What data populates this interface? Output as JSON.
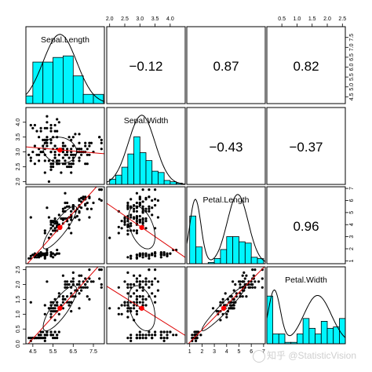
{
  "chart_data": {
    "type": "scatter-matrix",
    "variables": [
      "Sepal.Length",
      "Sepal.Width",
      "Petal.Length",
      "Petal.Width"
    ],
    "ranges": [
      [
        4.3,
        7.9
      ],
      [
        2.0,
        4.4
      ],
      [
        1.0,
        6.9
      ],
      [
        0.1,
        2.5
      ]
    ],
    "correlations": [
      {
        "row": 0,
        "col": 1,
        "label": "−0.12"
      },
      {
        "row": 0,
        "col": 2,
        "label": "0.87"
      },
      {
        "row": 0,
        "col": 3,
        "label": "0.82"
      },
      {
        "row": 1,
        "col": 2,
        "label": "−0.43"
      },
      {
        "row": 1,
        "col": 3,
        "label": "−0.37"
      },
      {
        "row": 2,
        "col": 3,
        "label": "0.96"
      }
    ],
    "top_ticks": [
      {
        "col": 1,
        "labels": [
          "2.0",
          "2.5",
          "3.0",
          "3.5",
          "4.0"
        ],
        "values": [
          2.0,
          2.5,
          3.0,
          3.5,
          4.0
        ]
      },
      {
        "col": 3,
        "labels": [
          "0.5",
          "1.0",
          "1.5",
          "2.0",
          "2.5"
        ],
        "values": [
          0.5,
          1.0,
          1.5,
          2.0,
          2.5
        ]
      }
    ],
    "bottom_ticks": [
      {
        "col": 0,
        "labels": [
          "4.5",
          "5.5",
          "6.5",
          "7.5"
        ],
        "values": [
          4.5,
          5.5,
          6.5,
          7.5
        ]
      },
      {
        "col": 2,
        "labels": [
          "1",
          "2",
          "3",
          "4",
          "5",
          "6",
          "7"
        ],
        "values": [
          1,
          2,
          3,
          4,
          5,
          6,
          7
        ]
      }
    ],
    "left_ticks": [
      {
        "row": 1,
        "labels": [
          "2.0",
          "2.5",
          "3.0",
          "3.5",
          "4.0"
        ],
        "values": [
          2.0,
          2.5,
          3.0,
          3.5,
          4.0
        ]
      },
      {
        "row": 3,
        "labels": [
          "0.0",
          "0.5",
          "1.0",
          "1.5",
          "2.0",
          "2.5"
        ],
        "values": [
          0.0,
          0.5,
          1.0,
          1.5,
          2.0,
          2.5
        ]
      }
    ],
    "right_ticks": [
      {
        "row": 0,
        "labels": [
          "4.5",
          "5.0",
          "5.5",
          "6.0",
          "6.5",
          "7.0",
          "7.5"
        ],
        "values": [
          4.5,
          5.0,
          5.5,
          6.0,
          6.5,
          7.0,
          7.5
        ]
      },
      {
        "row": 2,
        "labels": [
          "1",
          "2",
          "3",
          "4",
          "5",
          "6",
          "7"
        ],
        "values": [
          1,
          2,
          3,
          4,
          5,
          6,
          7
        ]
      }
    ],
    "histograms": [
      {
        "breaks": [
          4.0,
          4.5,
          5.0,
          5.5,
          6.0,
          6.5,
          7.0,
          7.5,
          8.0
        ],
        "counts": [
          5,
          27,
          27,
          30,
          31,
          18,
          6,
          6
        ]
      },
      {
        "breaks": [
          2.0,
          2.2,
          2.4,
          2.6,
          2.8,
          3.0,
          3.2,
          3.4,
          3.6,
          3.8,
          4.0,
          4.2,
          4.4
        ],
        "counts": [
          4,
          7,
          13,
          23,
          36,
          24,
          18,
          10,
          9,
          3,
          2,
          1
        ]
      },
      {
        "breaks": [
          1,
          1.5,
          2,
          2.5,
          3,
          3.5,
          4,
          4.5,
          5,
          5.5,
          6,
          6.5,
          7
        ],
        "counts": [
          37,
          13,
          0,
          1,
          4,
          11,
          21,
          21,
          17,
          16,
          5,
          4
        ]
      },
      {
        "breaks": [
          0.0,
          0.2,
          0.4,
          0.6,
          0.8,
          1.0,
          1.2,
          1.4,
          1.6,
          1.8,
          2.0,
          2.2,
          2.4,
          2.6
        ],
        "counts": [
          34,
          7,
          7,
          1,
          1,
          7,
          18,
          11,
          7,
          16,
          11,
          12,
          18
        ]
      }
    ],
    "density_curves": [
      {
        "mode": "normal",
        "mean": 5.84,
        "sd": 0.83,
        "peak_fraction": 0.9
      },
      {
        "mode": "normal",
        "mean": 3.06,
        "sd": 0.44,
        "peak_fraction": 0.9
      },
      {
        "mode": "bimodal",
        "components": [
          {
            "mean": 1.46,
            "sd": 0.45,
            "weight": 0.33
          },
          {
            "mean": 4.9,
            "sd": 0.85,
            "weight": 0.67
          }
        ],
        "peak_fraction": 0.9
      },
      {
        "mode": "bimodal",
        "components": [
          {
            "mean": 0.25,
            "sd": 0.2,
            "weight": 0.33
          },
          {
            "mean": 1.68,
            "sd": 0.45,
            "weight": 0.67
          }
        ],
        "peak_fraction": 0.7
      }
    ],
    "fits": [
      {
        "row": 1,
        "col": 0,
        "mean": [
          5.84,
          3.06
        ],
        "slope": -0.06,
        "intercept": 3.42
      },
      {
        "row": 2,
        "col": 0,
        "mean": [
          5.84,
          3.76
        ],
        "slope": 1.86,
        "intercept": -7.1
      },
      {
        "row": 2,
        "col": 1,
        "mean": [
          3.06,
          3.76
        ],
        "slope": -1.73,
        "intercept": 9.06
      },
      {
        "row": 3,
        "col": 0,
        "mean": [
          5.84,
          1.2
        ],
        "slope": 0.75,
        "intercept": -3.2
      },
      {
        "row": 3,
        "col": 1,
        "mean": [
          3.06,
          1.2
        ],
        "slope": -0.64,
        "intercept": 3.16
      },
      {
        "row": 3,
        "col": 2,
        "mean": [
          3.76,
          1.2
        ],
        "slope": 0.42,
        "intercept": -0.37
      }
    ],
    "ellipse_sd": [
      0.83,
      0.44,
      1.77,
      0.76
    ],
    "correlation_matrix": [
      [
        1.0,
        -0.12,
        0.87,
        0.82
      ],
      [
        -0.12,
        1.0,
        -0.43,
        -0.37
      ],
      [
        0.87,
        -0.43,
        1.0,
        0.96
      ],
      [
        0.82,
        -0.37,
        0.96,
        1.0
      ]
    ],
    "grid": false
  },
  "colors": {
    "histogram_fill": "#00F5FF",
    "fit_line": "#DD0000",
    "mean_point": "#FF0000",
    "point": "#000000",
    "ellipse": "#000000",
    "density": "#000000",
    "panel_border": "#000000"
  },
  "watermark": "知乎 @StatisticVision"
}
